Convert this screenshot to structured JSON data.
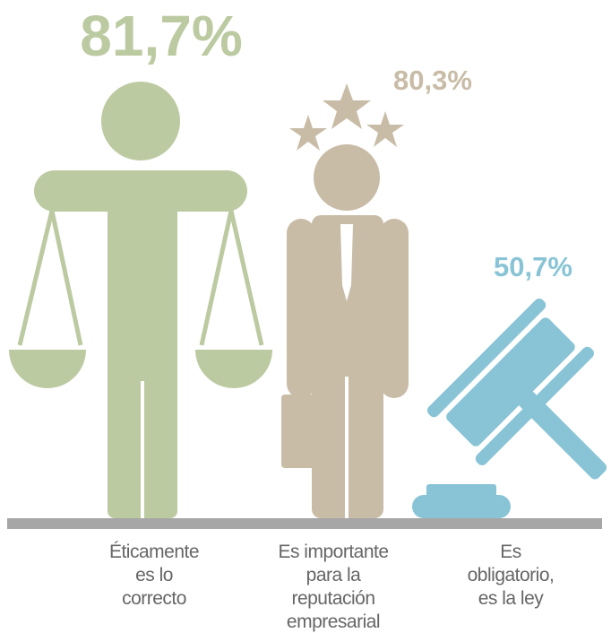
{
  "chart_data": {
    "type": "pictogram",
    "categories": [
      "Éticamente\nes lo\ncorrecto",
      "Es importante\npara la\nreputación\nempresarial",
      "Es\nobligatorio,\nes la ley"
    ],
    "values": [
      81.7,
      80.3,
      50.7
    ],
    "value_labels": [
      "81,7%",
      "80,3%",
      "50,7%"
    ],
    "colors": [
      "#bccaa2",
      "#c9bca7",
      "#88c4d6"
    ]
  }
}
